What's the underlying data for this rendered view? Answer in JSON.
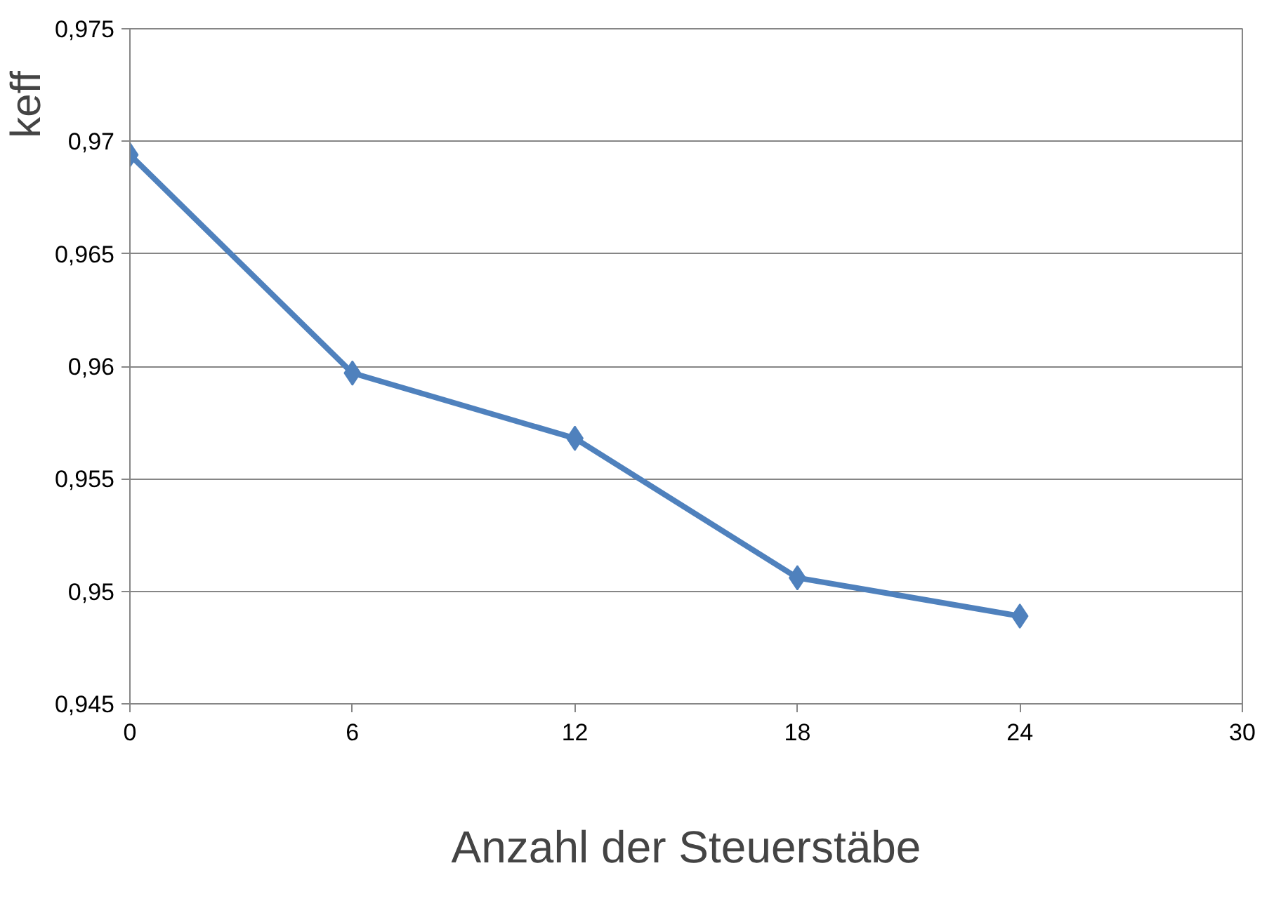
{
  "chart_data": {
    "type": "line",
    "xlabel": "Anzahl der Steuerstäbe",
    "ylabel": "keff",
    "x": [
      0,
      6,
      12,
      18,
      24
    ],
    "series": [
      {
        "color": "#4f81bd",
        "values": [
          0.9694,
          0.9597,
          0.9568,
          0.9506,
          0.9489
        ]
      }
    ],
    "xlim": [
      0,
      30
    ],
    "xticks": [
      0,
      6,
      12,
      18,
      24,
      30
    ],
    "ylim": [
      0.945,
      0.975
    ],
    "yticks": [
      {
        "value": 0.945,
        "label": "0,945"
      },
      {
        "value": 0.95,
        "label": "0,95"
      },
      {
        "value": 0.955,
        "label": "0,955"
      },
      {
        "value": 0.96,
        "label": "0,96"
      },
      {
        "value": 0.965,
        "label": "0,965"
      },
      {
        "value": 0.97,
        "label": "0,97"
      },
      {
        "value": 0.975,
        "label": "0,975"
      }
    ],
    "grid": "y",
    "marker": "diamond",
    "line_style": "solid"
  }
}
